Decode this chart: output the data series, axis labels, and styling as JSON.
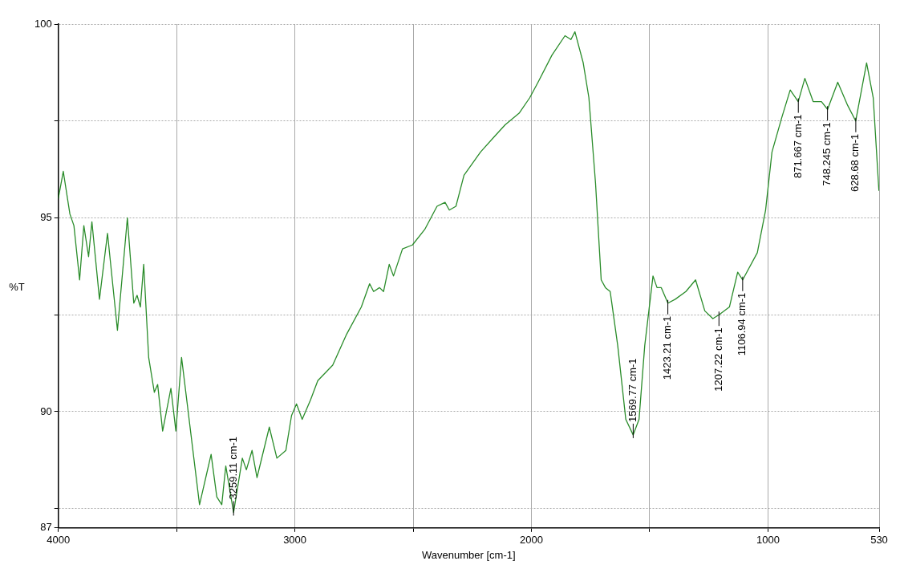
{
  "chart_data": {
    "type": "line",
    "xlabel": "Wavenumber [cm-1]",
    "ylabel": "%T",
    "x": [
      4000,
      3979,
      3951,
      3934,
      3910,
      3892,
      3872,
      3858,
      3826,
      3792,
      3750,
      3708,
      3681,
      3667,
      3653,
      3639,
      3618,
      3594,
      3580,
      3559,
      3524,
      3503,
      3479,
      3403,
      3354,
      3330,
      3309,
      3292,
      3259,
      3222,
      3205,
      3181,
      3160,
      3108,
      3076,
      3038,
      3014,
      2993,
      2969,
      2934,
      2903,
      2840,
      2781,
      2719,
      2684,
      2667,
      2642,
      2625,
      2601,
      2583,
      2545,
      2503,
      2451,
      2399,
      2365,
      2347,
      2319,
      2285,
      2215,
      2156,
      2111,
      2052,
      2007,
      1972,
      1913,
      1858,
      1833,
      1816,
      1781,
      1757,
      1729,
      1705,
      1687,
      1667,
      1635,
      1601,
      1570,
      1545,
      1521,
      1486,
      1469,
      1451,
      1423,
      1392,
      1347,
      1306,
      1267,
      1233,
      1207,
      1163,
      1128,
      1107,
      1045,
      1010,
      983,
      941,
      906,
      872,
      844,
      809,
      774,
      748,
      705,
      663,
      629,
      583,
      555,
      531
    ],
    "series": [
      {
        "color": "#2a8c2a",
        "values": [
          95.5,
          96.2,
          95.1,
          94.8,
          93.4,
          94.8,
          94.0,
          94.9,
          92.9,
          94.6,
          92.1,
          95.0,
          92.8,
          93.0,
          92.7,
          93.8,
          91.4,
          90.5,
          90.7,
          89.5,
          90.6,
          89.5,
          91.4,
          87.6,
          88.9,
          87.8,
          87.6,
          88.6,
          87.4,
          88.8,
          88.5,
          89.0,
          88.3,
          89.6,
          88.8,
          89.0,
          89.9,
          90.2,
          89.8,
          90.3,
          90.8,
          91.2,
          92.0,
          92.7,
          93.3,
          93.1,
          93.2,
          93.1,
          93.8,
          93.5,
          94.2,
          94.3,
          94.7,
          95.3,
          95.4,
          95.2,
          95.3,
          96.1,
          96.7,
          97.1,
          97.4,
          97.7,
          98.1,
          98.5,
          99.2,
          99.7,
          99.6,
          99.8,
          99.0,
          98.1,
          95.9,
          93.4,
          93.2,
          93.1,
          91.7,
          89.8,
          89.4,
          89.8,
          91.7,
          93.5,
          93.2,
          93.2,
          92.8,
          92.9,
          93.1,
          93.4,
          92.6,
          92.4,
          92.5,
          92.7,
          93.6,
          93.4,
          94.1,
          95.2,
          96.7,
          97.6,
          98.3,
          98.0,
          98.6,
          98.0,
          98.0,
          97.8,
          98.5,
          97.9,
          97.5,
          99.0,
          98.1,
          95.7
        ]
      }
    ],
    "xlim": [
      4000,
      530
    ],
    "ylim": [
      87,
      100
    ],
    "xticks": [
      4000,
      {
        "value": 3500,
        "label": null
      },
      3000,
      {
        "value": 2500,
        "label": null
      },
      2000,
      {
        "value": 1500,
        "label": null
      },
      1000,
      530
    ],
    "yticks": [
      87,
      {
        "value": 87.5,
        "label": null
      },
      90,
      {
        "value": 92.5,
        "label": null
      },
      95,
      {
        "value": 97.5,
        "label": null
      },
      100
    ],
    "grid": true,
    "legend": false,
    "marker": "none",
    "line_style": "solid",
    "annotations": [
      {
        "text": "3259.11 cm-1",
        "x": 3259.11,
        "y": 87.4
      },
      {
        "text": "1569.77 cm-1",
        "x": 1569.77,
        "y": 89.4
      },
      {
        "text": "1423.21 cm-1",
        "x": 1423.21,
        "y": 92.8
      },
      {
        "text": "1207.22 cm-1",
        "x": 1207.22,
        "y": 92.5
      },
      {
        "text": "1106.94 cm-1",
        "x": 1106.94,
        "y": 93.4
      },
      {
        "text": "871.667 cm-1",
        "x": 871.667,
        "y": 98.0
      },
      {
        "text": "748.245 cm-1",
        "x": 748.245,
        "y": 97.8
      },
      {
        "text": "628.68 cm-1",
        "x": 628.68,
        "y": 97.5
      }
    ]
  }
}
